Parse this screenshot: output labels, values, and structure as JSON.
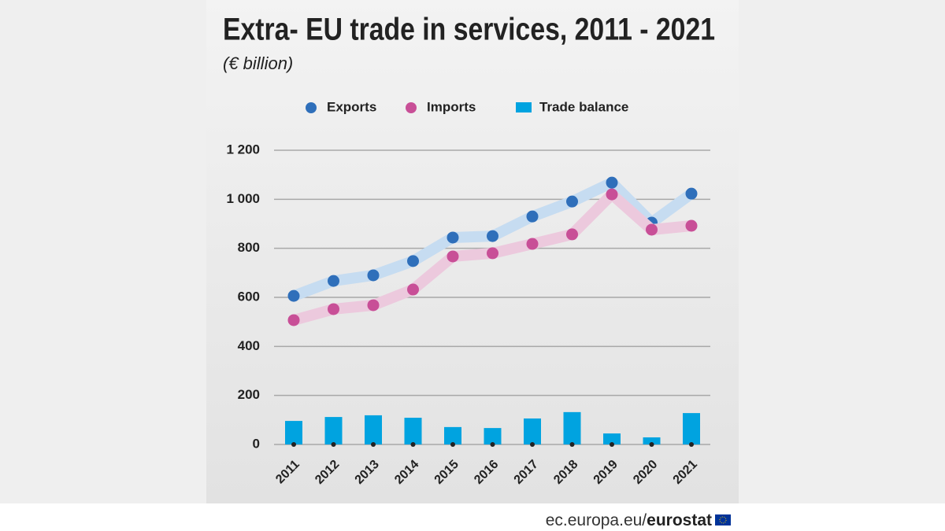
{
  "chart_data": {
    "type": "combo",
    "title": "Extra- EU trade in services, 2011 - 2021",
    "subtitle": "(€ billion)",
    "categories": [
      "2011",
      "2012",
      "2013",
      "2014",
      "2015",
      "2016",
      "2017",
      "2018",
      "2019",
      "2020",
      "2021"
    ],
    "series": [
      {
        "name": "Exports",
        "type": "line",
        "color": "#2f6fba",
        "line_color": "#c6dcf1",
        "values": [
          606,
          667,
          690,
          748,
          844,
          850,
          930,
          991,
          1068,
          905,
          1023
        ]
      },
      {
        "name": "Imports",
        "type": "line",
        "color": "#c84f97",
        "line_color": "#ecc9dd",
        "values": [
          507,
          552,
          568,
          632,
          767,
          780,
          818,
          857,
          1020,
          876,
          892
        ]
      },
      {
        "name": "Trade balance",
        "type": "bar",
        "color": "#00a3e0",
        "values": [
          96,
          112,
          119,
          109,
          71,
          67,
          106,
          132,
          45,
          29,
          128
        ]
      }
    ],
    "ylim": [
      0,
      1200
    ],
    "yticks": [
      0,
      200,
      400,
      600,
      800,
      {
        "value": 1000,
        "label": "1 000"
      },
      {
        "value": 1200,
        "label": "1 200"
      }
    ],
    "grid": true
  },
  "footer": {
    "site": "ec.europa.eu/",
    "brand": "eurostat"
  }
}
